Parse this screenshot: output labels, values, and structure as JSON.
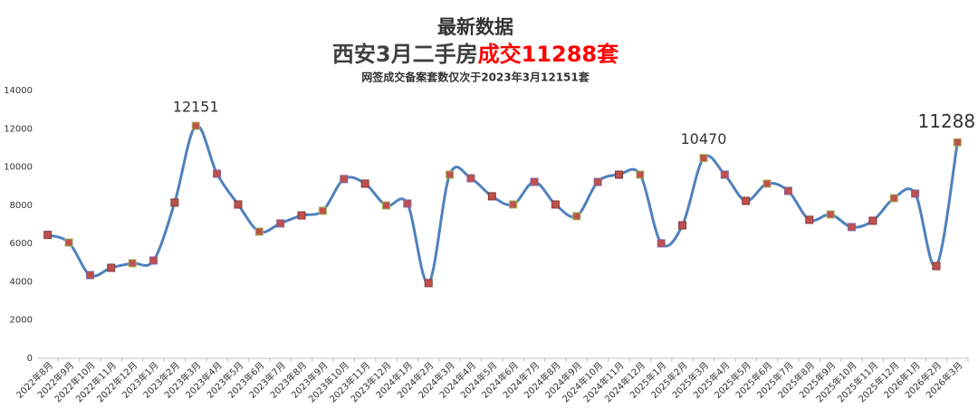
{
  "chart_data": {
    "type": "line",
    "title": "最新数据",
    "title2": [
      "西安3月二手房",
      "成交11288套"
    ],
    "subtitle": "网签成交备案套数仅次于2023年3月12151套",
    "categories": [
      "2022年8月",
      "2022年9月",
      "2022年10月",
      "2022年11月",
      "2022年12月",
      "2023年1月",
      "2023年2月",
      "2023年3月",
      "2023年4月",
      "2023年5月",
      "2023年6月",
      "2023年7月",
      "2023年8月",
      "2023年9月",
      "2023年10月",
      "2023年11月",
      "2023年12月",
      "2024年1月",
      "2024年2月",
      "2024年3月",
      "2024年4月",
      "2024年5月",
      "2024年6月",
      "2024年7月",
      "2024年8月",
      "2024年9月",
      "2024年10月",
      "2024年11月",
      "2024年12月",
      "2025年1月",
      "2025年2月",
      "2025年3月",
      "2025年4月",
      "2025年5月",
      "2025年6月",
      "2025年7月",
      "2025年8月",
      "2025年9月",
      "2025年10月",
      "2025年11月",
      "2025年12月",
      "2026年1月",
      "2026年2月",
      "2026年3月"
    ],
    "series": [
      {
        "color": "#4f81bd",
        "marker_color": "#c0504d",
        "values": [
          6450,
          6050,
          4350,
          4730,
          4970,
          5110,
          8140,
          12151,
          9650,
          8040,
          6620,
          7050,
          7470,
          7710,
          9370,
          9130,
          7990,
          8090,
          3930,
          9600,
          9410,
          8470,
          8040,
          9220,
          8040,
          7430,
          9220,
          9600,
          9600,
          6010,
          6950,
          10470,
          9600,
          8230,
          9130,
          8750,
          7240,
          7520,
          6860,
          7190,
          8370,
          8610,
          4820,
          11288
        ]
      }
    ],
    "data_labels": [
      7,
      31,
      43
    ],
    "ylim": [
      0,
      14000
    ],
    "yticks": [
      0,
      2000,
      4000,
      6000,
      8000,
      10000,
      12000,
      14000
    ],
    "grid": false
  }
}
